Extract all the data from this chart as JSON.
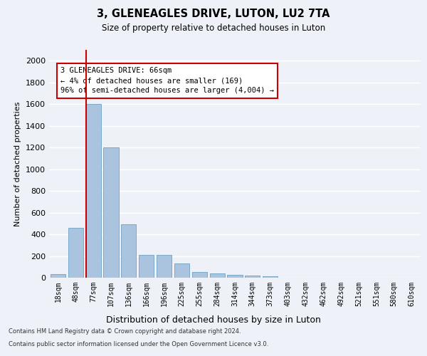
{
  "title1": "3, GLENEAGLES DRIVE, LUTON, LU2 7TA",
  "title2": "Size of property relative to detached houses in Luton",
  "xlabel": "Distribution of detached houses by size in Luton",
  "ylabel": "Number of detached properties",
  "bar_labels": [
    "18sqm",
    "48sqm",
    "77sqm",
    "107sqm",
    "136sqm",
    "166sqm",
    "196sqm",
    "225sqm",
    "255sqm",
    "284sqm",
    "314sqm",
    "344sqm",
    "373sqm",
    "403sqm",
    "432sqm",
    "462sqm",
    "492sqm",
    "521sqm",
    "551sqm",
    "580sqm",
    "610sqm"
  ],
  "bar_values": [
    35,
    460,
    1600,
    1200,
    490,
    210,
    210,
    130,
    50,
    40,
    25,
    20,
    10,
    0,
    0,
    0,
    0,
    0,
    0,
    0,
    0
  ],
  "bar_color": "#aac4e0",
  "bar_edgecolor": "#7aaac8",
  "vline_color": "#cc0000",
  "annotation_text": "3 GLENEAGLES DRIVE: 66sqm\n← 4% of detached houses are smaller (169)\n96% of semi-detached houses are larger (4,004) →",
  "annotation_box_color": "#cc0000",
  "ylim": [
    0,
    2100
  ],
  "yticks": [
    0,
    200,
    400,
    600,
    800,
    1000,
    1200,
    1400,
    1600,
    1800,
    2000
  ],
  "footer1": "Contains HM Land Registry data © Crown copyright and database right 2024.",
  "footer2": "Contains public sector information licensed under the Open Government Licence v3.0.",
  "bg_color": "#eef2f8",
  "grid_color": "#ffffff"
}
